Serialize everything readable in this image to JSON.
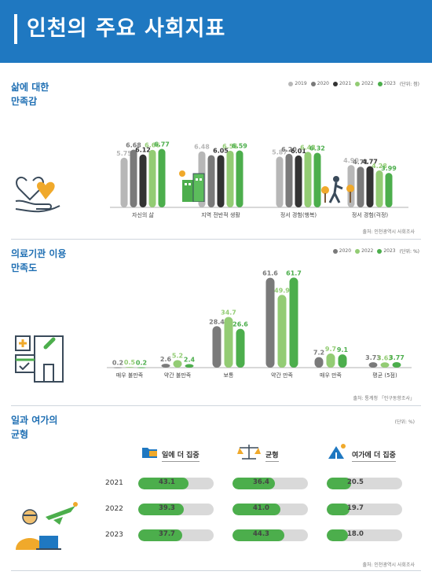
{
  "header": {
    "title": "인천의 주요 사회지표"
  },
  "colors": {
    "header_bg": "#1f78c1",
    "y2019": "#b7b7b7",
    "y2020": "#7a7a7a",
    "y2021": "#333333",
    "y2022": "#93cc74",
    "y2023": "#4cae4c"
  },
  "section1": {
    "title": [
      "삶에 대한",
      "만족감"
    ],
    "legend": [
      "2019",
      "2020",
      "2021",
      "2022",
      "2023"
    ],
    "unit": "(단위: 점)",
    "source": "출처: 인천광역시 사회조사",
    "icon": "heart-in-hand-icon"
  },
  "section2": {
    "title": [
      "의료기관 이용",
      "만족도"
    ],
    "legend": [
      "2020",
      "2022",
      "2023"
    ],
    "unit": "(단위: %)",
    "source": "출처: 통계청 「인구동향조사」",
    "icon": "hospital-icon"
  },
  "section3": {
    "title": [
      "일과 여가의",
      "균형"
    ],
    "unit": "(단위: %)",
    "source": "출처: 인천광역시 사회조사",
    "icon": "traveler-icon",
    "columns": [
      {
        "label": "일에 더 집중",
        "icon": "folder-icon"
      },
      {
        "label": "균형",
        "icon": "scale-icon"
      },
      {
        "label": "여가에 더 집중",
        "icon": "tent-icon"
      }
    ],
    "rows": [
      {
        "year": "2021",
        "values": [
          "43.1",
          "36.4",
          "20.5"
        ]
      },
      {
        "year": "2022",
        "values": [
          "39.3",
          "41.0",
          "19.7"
        ]
      },
      {
        "year": "2023",
        "values": [
          "37.7",
          "44.3",
          "18.0"
        ]
      }
    ]
  },
  "chart_data": [
    {
      "type": "bar",
      "categories": [
        "자신의 삶",
        "지역 전반적 생활",
        "정서 경험(행복)",
        "정서 경험(걱정)"
      ],
      "series": [
        {
          "name": "2019",
          "values": [
            5.75,
            6.48,
            5.87,
            4.9
          ]
        },
        {
          "name": "2020",
          "values": [
            6.68,
            6.05,
            6.2,
            4.71
          ]
        },
        {
          "name": "2021",
          "values": [
            6.12,
            6.05,
            6.01,
            4.77
          ]
        },
        {
          "name": "2022",
          "values": [
            6.66,
            6.56,
            6.43,
            4.28
          ]
        },
        {
          "name": "2023",
          "values": [
            6.77,
            6.59,
            6.32,
            3.99
          ]
        }
      ],
      "labels": [
        [
          "5.75",
          "6.48",
          "5.87",
          "4.90"
        ],
        [
          "6.68",
          "",
          "6.20",
          "4.71"
        ],
        [
          "6.12",
          "6.05",
          "6.01",
          "4.77"
        ],
        [
          "6.66",
          "6.56",
          "6.43",
          "4.28"
        ],
        [
          "6.77",
          "6.59",
          "6.32",
          "3.99"
        ]
      ],
      "ylim": [
        0,
        10
      ],
      "grid": false,
      "legend": "top-right"
    },
    {
      "type": "bar",
      "categories": [
        "매우 불만족",
        "약간 불만족",
        "보통",
        "약간 만족",
        "매우 만족",
        "평균 (5점)"
      ],
      "series": [
        {
          "name": "2020",
          "values": [
            0.2,
            2.6,
            28.4,
            61.6,
            7.2,
            3.73
          ]
        },
        {
          "name": "2022",
          "values": [
            0.5,
            5.2,
            34.7,
            49.9,
            9.7,
            3.63
          ]
        },
        {
          "name": "2023",
          "values": [
            0.2,
            2.4,
            26.6,
            61.7,
            9.1,
            3.77
          ]
        }
      ],
      "labels": [
        [
          "0.2",
          "2.6",
          "28.4",
          "61.6",
          "7.2",
          "3.73"
        ],
        [
          "0.5",
          "5.2",
          "34.7",
          "49.9",
          "9.7",
          "3.63"
        ],
        [
          "0.2",
          "2.4",
          "26.6",
          "61.7",
          "9.1",
          "3.77"
        ]
      ],
      "ylim": [
        0,
        70
      ],
      "grid": false,
      "legend": "top-right"
    },
    {
      "type": "bar",
      "categories": [
        "일에 더 집중",
        "균형",
        "여가에 더 집중"
      ],
      "x": [
        "2021",
        "2022",
        "2023"
      ],
      "series": [
        {
          "name": "2021",
          "values": [
            43.1,
            36.4,
            20.5
          ]
        },
        {
          "name": "2022",
          "values": [
            39.3,
            41.0,
            19.7
          ]
        },
        {
          "name": "2023",
          "values": [
            37.7,
            44.3,
            18.0
          ]
        }
      ],
      "ylim": [
        0,
        100
      ]
    }
  ]
}
